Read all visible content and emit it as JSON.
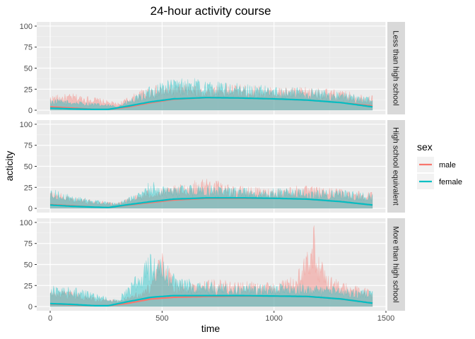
{
  "chart_data": {
    "type": "area",
    "title": "24-hour activity course",
    "xlabel": "time",
    "ylabel": "acticity",
    "xlim": [
      -60,
      1500
    ],
    "ylim": [
      -5,
      105
    ],
    "x_ticks": [
      0,
      500,
      1000,
      1500
    ],
    "y_ticks": [
      0,
      25,
      50,
      75,
      100
    ],
    "grid": true,
    "legend": {
      "title": "sex",
      "position": "right"
    },
    "series_styles": [
      {
        "name": "male",
        "color": "#F8766D"
      },
      {
        "name": "female",
        "color": "#00BFC4"
      }
    ],
    "facets": [
      {
        "label": "Less than high school",
        "smooth": {
          "x": [
            0,
            100,
            200,
            260,
            350,
            450,
            550,
            700,
            850,
            1000,
            1150,
            1300,
            1440
          ],
          "male": [
            4,
            2.5,
            1,
            1,
            4,
            9,
            13,
            15,
            14.5,
            13.5,
            12,
            9,
            5
          ],
          "female": [
            2.5,
            1.5,
            1,
            1,
            5,
            10,
            13.5,
            15,
            14.5,
            13.5,
            12,
            9,
            4
          ]
        },
        "band_male": {
          "x": [
            0,
            100,
            200,
            300,
            400,
            450,
            500,
            600,
            700,
            800,
            900,
            1000,
            1100,
            1200,
            1300,
            1440
          ],
          "upper": [
            18,
            20,
            16,
            9,
            24,
            30,
            30,
            32,
            30,
            32,
            30,
            28,
            28,
            27,
            24,
            18
          ]
        },
        "band_female": {
          "x": [
            0,
            100,
            200,
            300,
            400,
            450,
            500,
            600,
            700,
            800,
            900,
            1000,
            1100,
            1200,
            1300,
            1440
          ],
          "upper": [
            14,
            12,
            9,
            6,
            20,
            30,
            36,
            40,
            36,
            33,
            31,
            29,
            28,
            26,
            22,
            15
          ]
        }
      },
      {
        "label": "High school equivalent",
        "smooth": {
          "x": [
            0,
            100,
            200,
            260,
            350,
            450,
            550,
            700,
            850,
            1000,
            1150,
            1300,
            1440
          ],
          "male": [
            4.5,
            3,
            1.5,
            1,
            4,
            7,
            10,
            12,
            12,
            12,
            11,
            8,
            4
          ],
          "female": [
            4,
            2.5,
            1.5,
            1,
            4.5,
            8,
            11,
            12.5,
            12.5,
            12,
            11,
            8,
            4
          ]
        },
        "band_male": {
          "x": [
            0,
            100,
            200,
            300,
            400,
            450,
            500,
            600,
            700,
            800,
            900,
            1000,
            1100,
            1200,
            1300,
            1440
          ],
          "upper": [
            22,
            14,
            10,
            8,
            18,
            24,
            24,
            30,
            38,
            28,
            26,
            24,
            28,
            26,
            24,
            20
          ]
        },
        "band_female": {
          "x": [
            0,
            100,
            200,
            300,
            400,
            450,
            500,
            600,
            700,
            800,
            900,
            1000,
            1100,
            1200,
            1300,
            1440
          ],
          "upper": [
            24,
            16,
            10,
            7,
            20,
            34,
            26,
            28,
            28,
            26,
            24,
            24,
            24,
            23,
            22,
            18
          ]
        }
      },
      {
        "label": "More than high school",
        "smooth": {
          "x": [
            0,
            100,
            200,
            260,
            350,
            450,
            550,
            700,
            850,
            1000,
            1150,
            1300,
            1440
          ],
          "male": [
            3,
            2,
            1,
            1,
            4,
            9,
            11,
            12,
            12.5,
            12.5,
            12,
            9,
            4
          ],
          "female": [
            3.5,
            2.5,
            1,
            1,
            6,
            11,
            13,
            13,
            13,
            12.5,
            12,
            9,
            4
          ]
        },
        "band_male": {
          "x": [
            0,
            100,
            200,
            300,
            400,
            450,
            500,
            550,
            600,
            700,
            800,
            900,
            1000,
            1100,
            1150,
            1180,
            1200,
            1250,
            1300,
            1440
          ],
          "upper": [
            20,
            18,
            12,
            8,
            20,
            30,
            70,
            36,
            30,
            34,
            32,
            30,
            30,
            38,
            70,
            100,
            60,
            40,
            30,
            20
          ]
        },
        "band_female": {
          "x": [
            0,
            100,
            200,
            300,
            400,
            450,
            500,
            550,
            600,
            700,
            800,
            900,
            1000,
            1100,
            1200,
            1300,
            1440
          ],
          "upper": [
            25,
            24,
            16,
            8,
            45,
            65,
            60,
            40,
            34,
            30,
            28,
            28,
            28,
            28,
            26,
            24,
            20
          ]
        }
      }
    ]
  }
}
